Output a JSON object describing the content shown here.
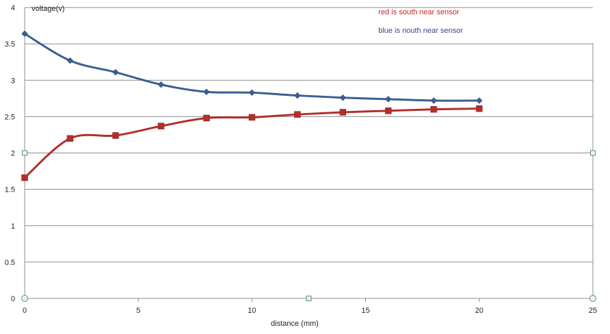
{
  "chart_data": {
    "type": "line",
    "title": "",
    "xlabel": "distance (mm)",
    "ylabel": "voltage(v)",
    "xlim": [
      0,
      25
    ],
    "ylim": [
      0,
      4
    ],
    "x_ticks": [
      0,
      5,
      10,
      15,
      20,
      25
    ],
    "y_ticks": [
      0,
      0.5,
      1,
      1.5,
      2,
      2.5,
      3,
      3.5,
      4
    ],
    "grid": "horizontal",
    "series": [
      {
        "name": "blue is nouth near sensor",
        "color": "#3B5E92",
        "marker": "diamond",
        "x": [
          0,
          2,
          4,
          6,
          8,
          10,
          12,
          14,
          16,
          18,
          20
        ],
        "y": [
          3.64,
          3.27,
          3.11,
          2.94,
          2.84,
          2.83,
          2.79,
          2.76,
          2.74,
          2.72,
          2.72
        ]
      },
      {
        "name": "red is south near sensor",
        "color": "#B0302C",
        "marker": "square",
        "x": [
          0,
          2,
          4,
          6,
          8,
          10,
          12,
          14,
          16,
          18,
          20
        ],
        "y": [
          1.66,
          2.2,
          2.24,
          2.37,
          2.48,
          2.49,
          2.53,
          2.56,
          2.58,
          2.6,
          2.61
        ]
      }
    ],
    "legend": [
      {
        "label": "red is south near sensor",
        "color": "#C0282A"
      },
      {
        "label": "blue is nouth near sensor",
        "color": "#3A4696"
      }
    ]
  }
}
